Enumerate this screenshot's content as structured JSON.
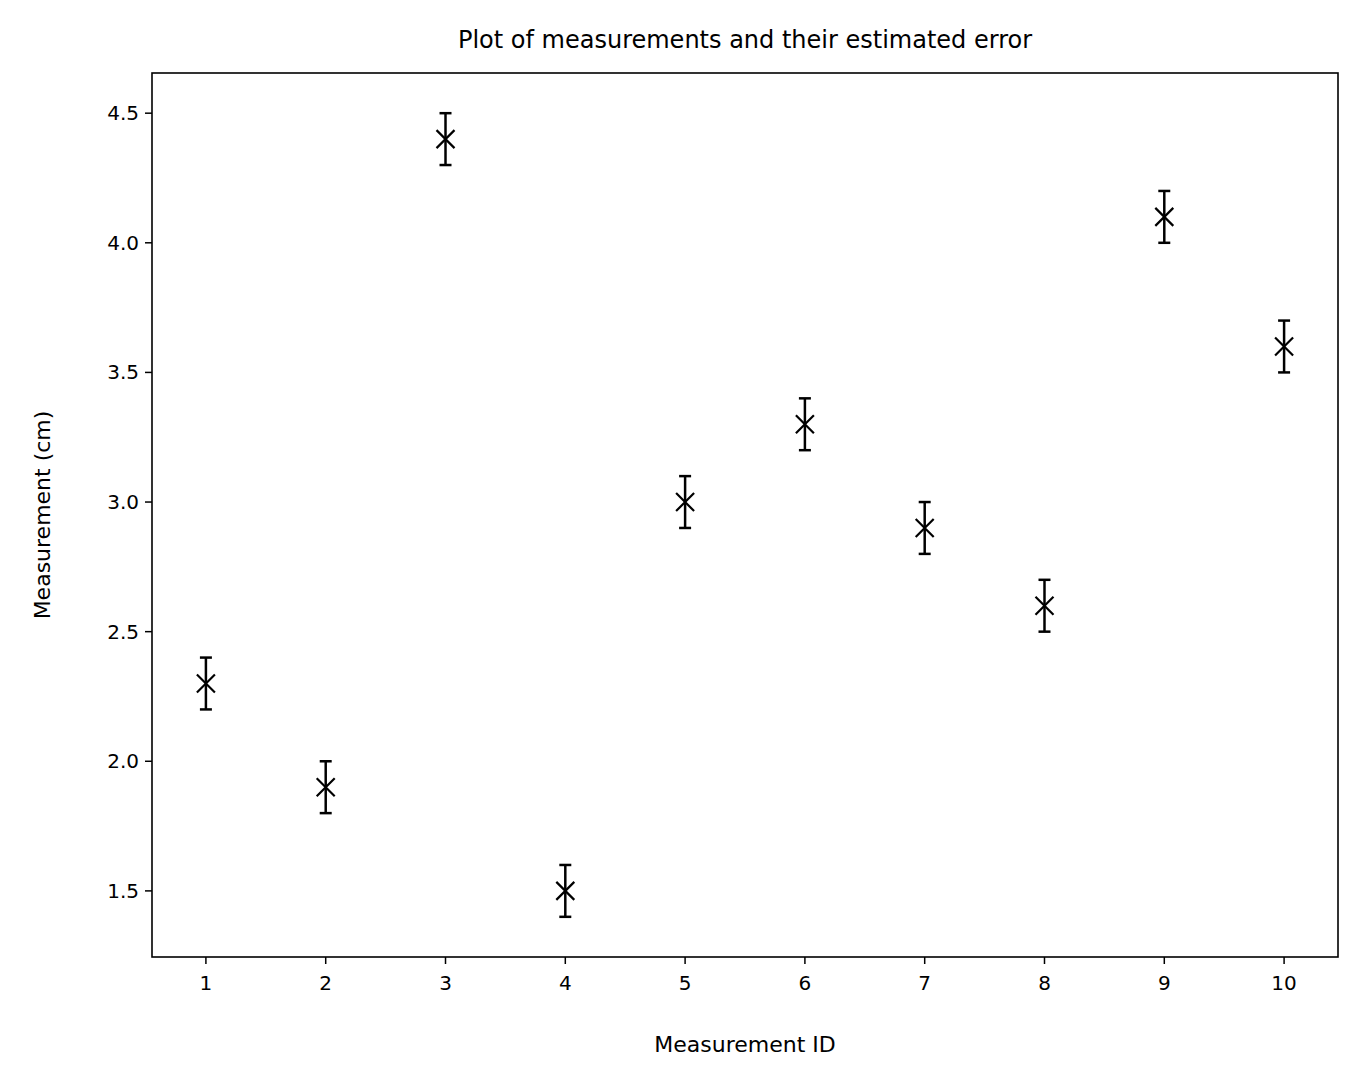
{
  "chart_data": {
    "type": "scatter",
    "title": "Plot of measurements and their estimated error",
    "x_label": "Measurement ID",
    "y_label": "Measurement (cm)",
    "x": [
      1,
      2,
      3,
      4,
      5,
      6,
      7,
      8,
      9,
      10
    ],
    "y": [
      2.3,
      1.9,
      4.4,
      1.5,
      3.0,
      3.3,
      2.9,
      2.6,
      4.1,
      3.6
    ],
    "errors": [
      0.1,
      0.1,
      0.1,
      0.1,
      0.1,
      0.1,
      0.1,
      0.1,
      0.1,
      0.1
    ],
    "color": "#000000",
    "marker": "x",
    "xlim": [
      0.55,
      10.45
    ],
    "xticks": [
      1,
      2,
      3,
      4,
      5,
      6,
      7,
      8,
      9,
      10
    ],
    "ylim": [
      1.245,
      4.655
    ],
    "yticks": [
      1.5,
      {
        "value": 2,
        "label": "2.0"
      },
      2.5,
      {
        "value": 3,
        "label": "3.0"
      },
      3.5,
      {
        "value": 4,
        "label": "4.0"
      },
      4.5
    ],
    "grid": false
  }
}
